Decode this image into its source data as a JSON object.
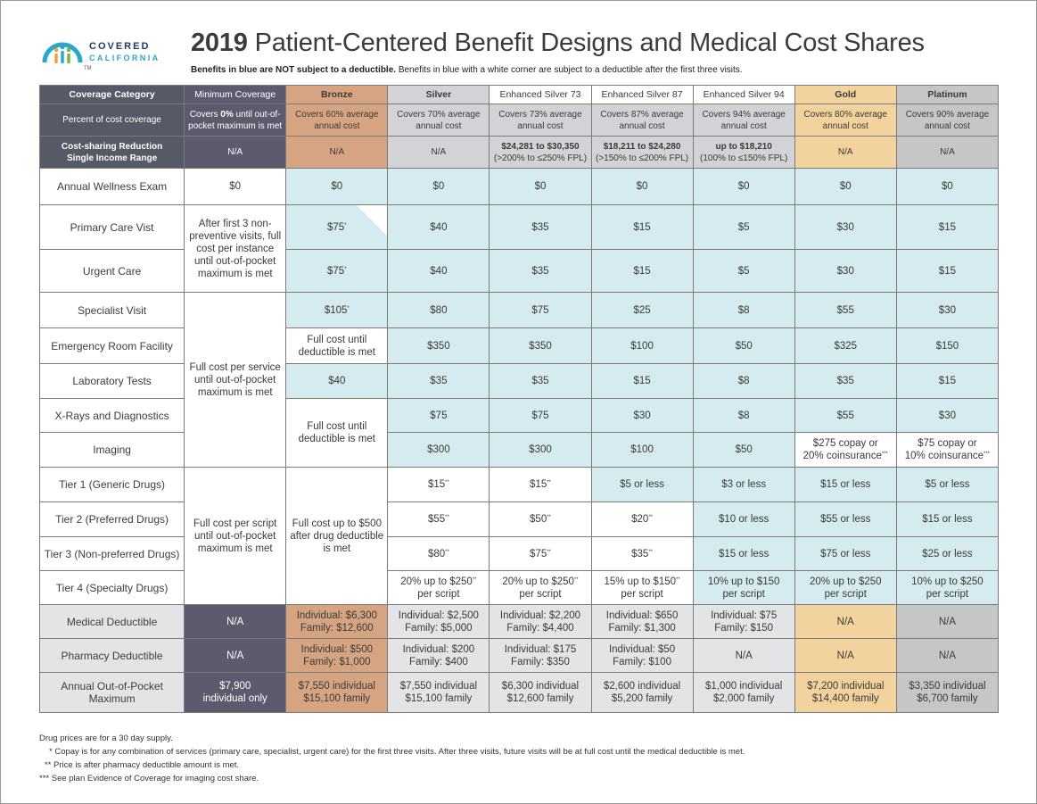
{
  "logo": {
    "line1": "COVERED",
    "line2": "CALIFORNIA",
    "tm": "TM"
  },
  "title": {
    "year": "2019",
    "text": "Patient-Centered Benefit Designs and Medical Cost Shares"
  },
  "subtitle": {
    "bold": "Benefits in blue are NOT subject to a deductible.",
    "rest": "Benefits in blue with a white corner are subject to a deductible after the first three visits."
  },
  "colors": {
    "header_dark": "#565a66",
    "bronze": "#d7a482",
    "silver": "#d1d3d6",
    "gold": "#f2d39d",
    "platinum": "#c5c6c8",
    "blue": "#d5ebef"
  },
  "headers": [
    "Coverage Category",
    "Minimum Coverage",
    "Bronze",
    "Silver",
    "Enhanced Silver 73",
    "Enhanced Silver 87",
    "Enhanced Silver 94",
    "Gold",
    "Platinum"
  ],
  "percent_row": {
    "label": "Percent of cost coverage",
    "min_1": "Covers",
    "min_b": "0%",
    "min_2": "until out-of-pocket maximum is met",
    "cells": [
      "Covers 60% average annual cost",
      "Covers 70% average annual cost",
      "Covers 73% average annual cost",
      "Covers 87% average annual cost",
      "Covers 94% average annual cost",
      "Covers 80% average annual cost",
      "Covers 90% average annual cost"
    ]
  },
  "csr_row": {
    "label1": "Cost-sharing Reduction",
    "label2": "Single Income Range",
    "min": "N/A",
    "bronze": "N/A",
    "silver": "N/A",
    "es73_1": "$24,281 to $30,350",
    "es73_2": "(>200% to ≤250% FPL)",
    "es87_1": "$18,211 to $24,280",
    "es87_2": "(>150% to ≤200% FPL)",
    "es94_1": "up to $18,210",
    "es94_2": "(100% to ≤150% FPL)",
    "gold": "N/A",
    "plat": "N/A"
  },
  "rows": {
    "wellness": {
      "label": "Annual Wellness Exam",
      "min": "$0",
      "vals": [
        "$0",
        "$0",
        "$0",
        "$0",
        "$0",
        "$0",
        "$0"
      ]
    },
    "primary": {
      "label": "Primary Care Vist",
      "bronze": "$75",
      "vals": [
        "$40",
        "$35",
        "$15",
        "$5",
        "$30",
        "$15"
      ]
    },
    "urgent": {
      "label": "Urgent Care",
      "bronze": "$75",
      "vals": [
        "$40",
        "$35",
        "$15",
        "$5",
        "$30",
        "$15"
      ]
    },
    "min_visits": "After first 3 non-preventive visits, full cost per instance until out-of-pocket maximum is met",
    "specialist": {
      "label": "Specialist Visit",
      "bronze": "$105",
      "vals": [
        "$80",
        "$75",
        "$25",
        "$8",
        "$55",
        "$30"
      ]
    },
    "min_full": "Full cost per service until out-of-pocket maximum is met",
    "er": {
      "label": "Emergency Room Facility",
      "bronze": "Full cost until deductible is met",
      "vals": [
        "$350",
        "$350",
        "$100",
        "$50",
        "$325",
        "$150"
      ]
    },
    "lab": {
      "label": "Laboratory Tests",
      "bronze": "$40",
      "vals": [
        "$35",
        "$35",
        "$15",
        "$8",
        "$35",
        "$15"
      ]
    },
    "xray": {
      "label": "X-Rays and Diagnostics",
      "vals": [
        "$75",
        "$75",
        "$30",
        "$8",
        "$55",
        "$30"
      ]
    },
    "bronze_full": "Full cost until deductible is met",
    "imaging": {
      "label": "Imaging",
      "vals": [
        "$300",
        "$300",
        "$100",
        "$50"
      ],
      "gold_1": "$275 copay or",
      "gold_2": "20% coinsurance",
      "plat_1": "$75 copay or",
      "plat_2": "10% coinsurance"
    },
    "min_script": "Full cost per script until out-of-pocket maximum is met",
    "bronze_drug": "Full cost up to $500 after drug deductible is met",
    "tier1": {
      "label": "Tier 1 (Generic Drugs)",
      "vals": [
        "$15",
        "$15",
        "$5 or less",
        "$3 or less",
        "$15 or less",
        "$5 or less"
      ]
    },
    "tier2": {
      "label": "Tier 2 (Preferred Drugs)",
      "vals": [
        "$55",
        "$50",
        "$20",
        "$10 or less",
        "$55 or less",
        "$15 or less"
      ]
    },
    "tier3": {
      "label": "Tier 3 (Non-preferred Drugs)",
      "vals": [
        "$80",
        "$75",
        "$35",
        "$15 or less",
        "$75 or less",
        "$25 or less"
      ]
    },
    "tier4": {
      "label": "Tier 4 (Specialty Drugs)",
      "silver_1": "20% up to $250",
      "es73_1": "20% up to $250",
      "es87_1": "15% up to $150",
      "es94_1": "10% up to $150",
      "gold_1": "20% up to $250",
      "plat_1": "10% up to $250",
      "line2": "per script"
    },
    "med_ded": {
      "label": "Medical Deductible",
      "min": "N/A",
      "bronze_1": "Individual: $6,300",
      "bronze_2": "Family: $12,600",
      "silver_1": "Individual: $2,500",
      "silver_2": "Family: $5,000",
      "es73_1": "Individual: $2,200",
      "es73_2": "Family: $4,400",
      "es87_1": "Individual: $650",
      "es87_2": "Family: $1,300",
      "es94_1": "Individual: $75",
      "es94_2": "Family: $150",
      "gold": "N/A",
      "plat": "N/A"
    },
    "pharm_ded": {
      "label": "Pharmacy Deductible",
      "min": "N/A",
      "bronze_1": "Individual: $500",
      "bronze_2": "Family: $1,000",
      "silver_1": "Individual: $200",
      "silver_2": "Family: $400",
      "es73_1": "Individual: $175",
      "es73_2": "Family: $350",
      "es87_1": "Individual: $50",
      "es87_2": "Family: $100",
      "es94": "N/A",
      "gold": "N/A",
      "plat": "N/A"
    },
    "oop": {
      "label": "Annual Out-of-Pocket Maximum",
      "min_1": "$7,900",
      "min_2": "individual only",
      "bronze_1": "$7,550 individual",
      "bronze_2": "$15,100 family",
      "silver_1": "$7,550 individual",
      "silver_2": "$15,100 family",
      "es73_1": "$6,300 individual",
      "es73_2": "$12,600 family",
      "es87_1": "$2,600 individual",
      "es87_2": "$5,200 family",
      "es94_1": "$1,000 individual",
      "es94_2": "$2,000 family",
      "gold_1": "$7,200 individual",
      "gold_2": "$14,400 family",
      "plat_1": "$3,350 individual",
      "plat_2": "$6,700 family"
    }
  },
  "marks": {
    "s1": "*",
    "s2": "**",
    "s3": "***"
  },
  "notes": [
    "Drug prices are for a 30 day supply.",
    "* Copay is for any combination of services (primary care, specialist, urgent care) for the first three visits. After three visits, future visits will be at full cost until the medical deductible is met.",
    "** Price is after pharmacy deductible amount is met.",
    "*** See plan Evidence of Coverage for imaging cost share."
  ]
}
